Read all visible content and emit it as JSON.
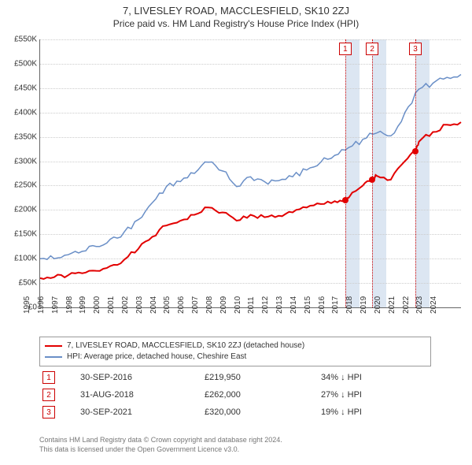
{
  "title": "7, LIVESLEY ROAD, MACCLESFIELD, SK10 2ZJ",
  "subtitle": "Price paid vs. HM Land Registry's House Price Index (HPI)",
  "chart": {
    "type": "line",
    "x_range": [
      1995,
      2025
    ],
    "y_range": [
      0,
      550000
    ],
    "y_ticks": [
      0,
      50000,
      100000,
      150000,
      200000,
      250000,
      300000,
      350000,
      400000,
      450000,
      500000,
      550000
    ],
    "y_tick_labels": [
      "£0",
      "£50K",
      "£100K",
      "£150K",
      "£200K",
      "£250K",
      "£300K",
      "£350K",
      "£400K",
      "£450K",
      "£500K",
      "£550K"
    ],
    "x_ticks": [
      1995,
      1996,
      1997,
      1998,
      1999,
      2000,
      2001,
      2002,
      2003,
      2004,
      2005,
      2006,
      2007,
      2008,
      2009,
      2010,
      2011,
      2012,
      2013,
      2014,
      2015,
      2016,
      2017,
      2018,
      2019,
      2020,
      2021,
      2022,
      2023,
      2024
    ],
    "background_color": "#ffffff",
    "grid_color": "#cccccc",
    "axis_color": "#666666",
    "band_color": "#dce6f2",
    "event_line_color": "#cc0000",
    "series": [
      {
        "name": "property",
        "color": "#e20000",
        "width": 2,
        "data": [
          [
            1995,
            60000
          ],
          [
            1996,
            62000
          ],
          [
            1997,
            66000
          ],
          [
            1998,
            70000
          ],
          [
            1999,
            75000
          ],
          [
            2000,
            85000
          ],
          [
            2001,
            98000
          ],
          [
            2002,
            120000
          ],
          [
            2003,
            145000
          ],
          [
            2004,
            168000
          ],
          [
            2005,
            178000
          ],
          [
            2006,
            190000
          ],
          [
            2007,
            205000
          ],
          [
            2008,
            195000
          ],
          [
            2009,
            178000
          ],
          [
            2010,
            190000
          ],
          [
            2011,
            185000
          ],
          [
            2012,
            188000
          ],
          [
            2013,
            195000
          ],
          [
            2014,
            205000
          ],
          [
            2015,
            212000
          ],
          [
            2016,
            218000
          ],
          [
            2016.75,
            219950
          ],
          [
            2017,
            225000
          ],
          [
            2018,
            250000
          ],
          [
            2018.67,
            262000
          ],
          [
            2019,
            270000
          ],
          [
            2020,
            262000
          ],
          [
            2021,
            300000
          ],
          [
            2021.75,
            320000
          ],
          [
            2022,
            340000
          ],
          [
            2023,
            360000
          ],
          [
            2024,
            375000
          ],
          [
            2025,
            380000
          ]
        ]
      },
      {
        "name": "hpi",
        "color": "#6a8fc7",
        "width": 1.5,
        "data": [
          [
            1995,
            100000
          ],
          [
            1996,
            100000
          ],
          [
            1997,
            108000
          ],
          [
            1998,
            115000
          ],
          [
            1999,
            125000
          ],
          [
            2000,
            140000
          ],
          [
            2001,
            155000
          ],
          [
            2002,
            180000
          ],
          [
            2003,
            215000
          ],
          [
            2004,
            248000
          ],
          [
            2005,
            258000
          ],
          [
            2006,
            275000
          ],
          [
            2007,
            298000
          ],
          [
            2008,
            280000
          ],
          [
            2009,
            248000
          ],
          [
            2010,
            268000
          ],
          [
            2011,
            258000
          ],
          [
            2012,
            260000
          ],
          [
            2013,
            268000
          ],
          [
            2014,
            282000
          ],
          [
            2015,
            298000
          ],
          [
            2016,
            312000
          ],
          [
            2017,
            328000
          ],
          [
            2018,
            345000
          ],
          [
            2019,
            358000
          ],
          [
            2020,
            352000
          ],
          [
            2021,
            400000
          ],
          [
            2022,
            448000
          ],
          [
            2023,
            460000
          ],
          [
            2024,
            472000
          ],
          [
            2025,
            478000
          ]
        ]
      }
    ],
    "bands": [
      {
        "from": 2016.75,
        "to": 2017.75
      },
      {
        "from": 2018.67,
        "to": 2019.67
      },
      {
        "from": 2021.75,
        "to": 2022.75
      }
    ],
    "event_markers": [
      {
        "n": "1",
        "x": 2016.75,
        "y": 219950
      },
      {
        "n": "2",
        "x": 2018.67,
        "y": 262000
      },
      {
        "n": "3",
        "x": 2021.75,
        "y": 320000
      }
    ]
  },
  "legend": {
    "items": [
      {
        "color": "#e20000",
        "label": "7, LIVESLEY ROAD, MACCLESFIELD, SK10 2ZJ (detached house)"
      },
      {
        "color": "#6a8fc7",
        "label": "HPI: Average price, detached house, Cheshire East"
      }
    ]
  },
  "events": [
    {
      "n": "1",
      "date": "30-SEP-2016",
      "price": "£219,950",
      "delta": "34% ↓ HPI"
    },
    {
      "n": "2",
      "date": "31-AUG-2018",
      "price": "£262,000",
      "delta": "27% ↓ HPI"
    },
    {
      "n": "3",
      "date": "30-SEP-2021",
      "price": "£320,000",
      "delta": "19% ↓ HPI"
    }
  ],
  "footer": {
    "line1": "Contains HM Land Registry data © Crown copyright and database right 2024.",
    "line2": "This data is licensed under the Open Government Licence v3.0."
  }
}
